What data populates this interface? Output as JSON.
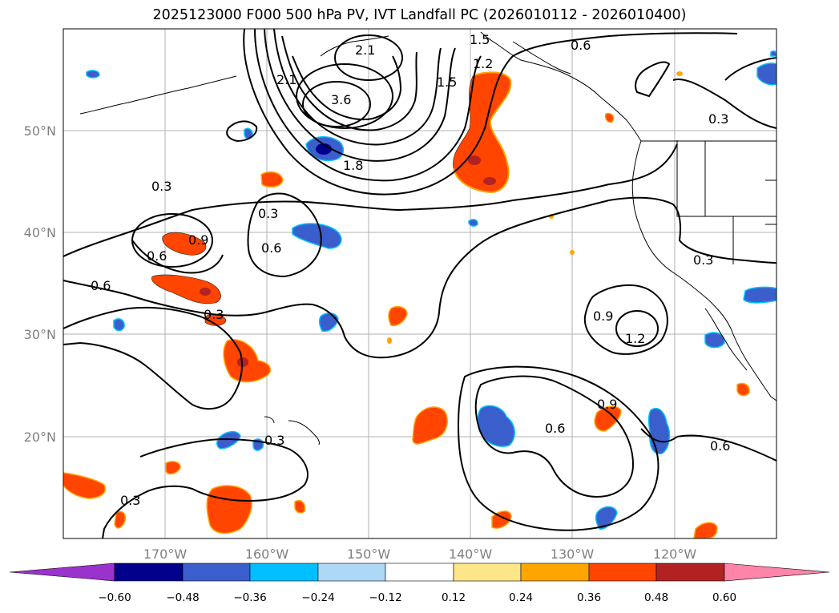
{
  "title": "2025123000 F000 500 hPa PV, IVT Landfall PC (2026010112 - 2026010400)",
  "map": {
    "lon_labels": [
      "170°W",
      "160°W",
      "150°W",
      "140°W",
      "130°W",
      "120°W"
    ],
    "lat_labels": [
      "50°N",
      "40°N",
      "30°N",
      "20°N"
    ],
    "contour_labels": [
      "1.5",
      "1.2",
      "0.6",
      "2.1",
      "2.1",
      "3.6",
      "1.5",
      "1.8",
      "0.3",
      "0.3",
      "0.9",
      "0.6",
      "0.6",
      "0.6",
      "0.3",
      "0.3",
      "0.9",
      "1.2",
      "0.3",
      "0.6",
      "0.9",
      "0.3",
      "0.3",
      "0.6"
    ]
  },
  "colorbar": {
    "ticks": [
      "−0.60",
      "−0.48",
      "−0.36",
      "−0.24",
      "−0.12",
      "0.12",
      "0.24",
      "0.36",
      "0.48",
      "0.60"
    ],
    "colors": [
      "#9933cc",
      "#00008b",
      "#3a5fcd",
      "#00bfff",
      "#add8f6",
      "#ffffff",
      "#fde68a",
      "#ffa500",
      "#ff4500",
      "#b22222",
      "#ff85a8"
    ]
  }
}
